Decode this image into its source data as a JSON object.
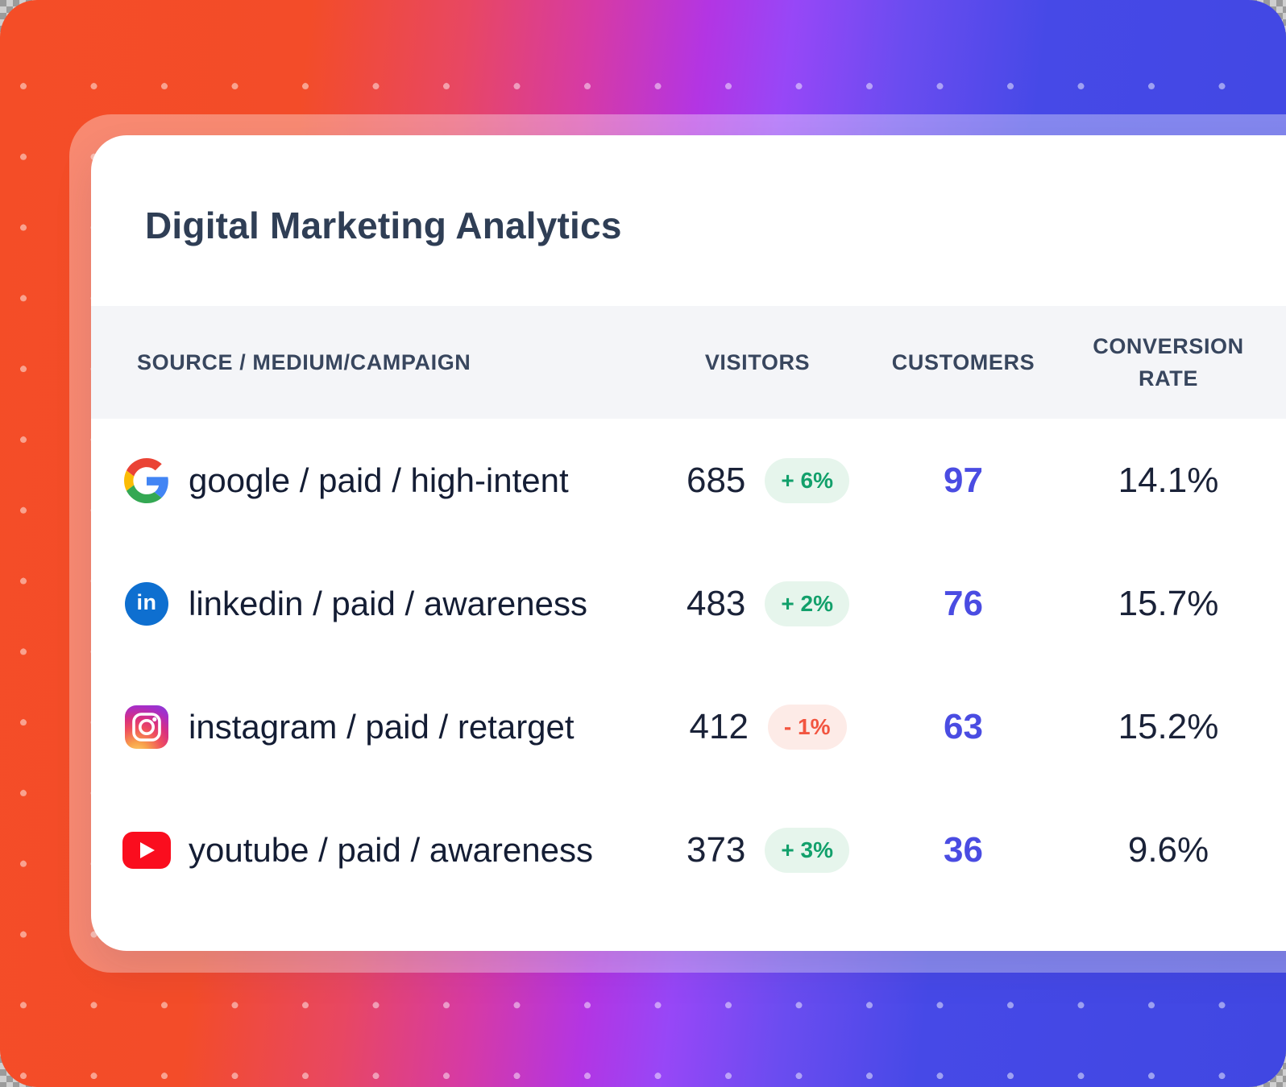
{
  "card": {
    "title": "Digital Marketing Analytics",
    "table": {
      "headers": [
        "SOURCE / MEDIUM/CAMPAIGN",
        "VISITORS",
        "CUSTOMERS",
        "CONVERSION RATE"
      ],
      "rows": [
        {
          "icon": "google-icon",
          "source": "google / paid / high-intent",
          "visitors": "685",
          "change": "+ 6%",
          "change_direction": "up",
          "customers": "97",
          "conversion_rate": "14.1%"
        },
        {
          "icon": "linkedin-icon",
          "source": "linkedin / paid / awareness",
          "visitors": "483",
          "change": "+ 2%",
          "change_direction": "up",
          "customers": "76",
          "conversion_rate": "15.7%"
        },
        {
          "icon": "instagram-icon",
          "source": "instagram / paid / retarget",
          "visitors": "412",
          "change": "- 1%",
          "change_direction": "down",
          "customers": "63",
          "conversion_rate": "15.2%"
        },
        {
          "icon": "youtube-icon",
          "source": "youtube / paid / awareness",
          "visitors": "373",
          "change": "+ 3%",
          "change_direction": "up",
          "customers": "36",
          "conversion_rate": "9.6%"
        }
      ]
    }
  },
  "colors": {
    "gradient_left": "#f44d27",
    "gradient_mid": "#b335e3",
    "gradient_right": "#4047e2",
    "card_background": "#ffffff",
    "header_band": "#f4f5f8",
    "title_text": "#2f3e55",
    "row_text": "#141d34",
    "customers_accent": "#4a4ce2",
    "badge_up_text": "#12a06b",
    "badge_up_bg": "#e6f5ec",
    "badge_down_text": "#f25540",
    "badge_down_bg": "#fdebe7"
  }
}
